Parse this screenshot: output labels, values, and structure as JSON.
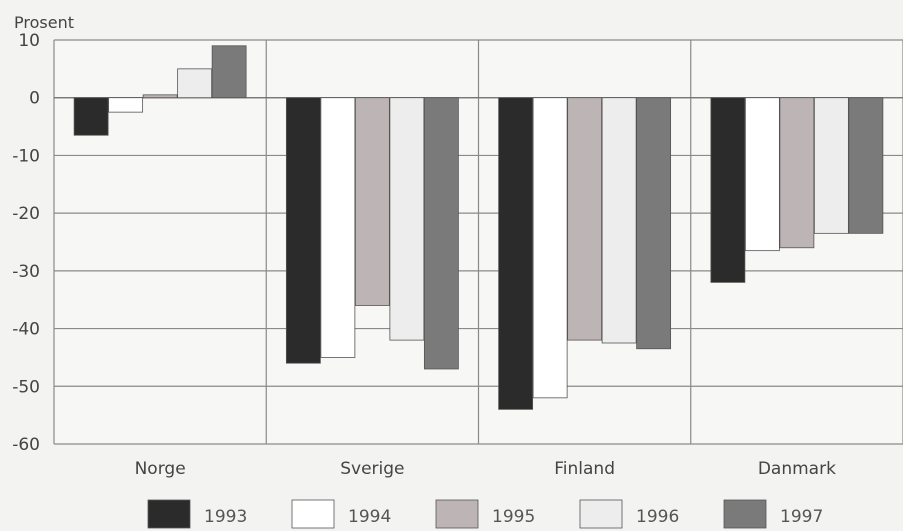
{
  "chart_data": {
    "type": "bar",
    "title": "",
    "unit_label": "Prosent",
    "xlabel": "",
    "ylabel": "Prosent",
    "ylim": [
      -60,
      10
    ],
    "yticks": [
      10,
      0,
      -10,
      -20,
      -30,
      -40,
      -50,
      -60
    ],
    "grid": true,
    "legend_position": "bottom",
    "categories": [
      "Norge",
      "Sverige",
      "Finland",
      "Danmark"
    ],
    "series": [
      {
        "name": "1993",
        "color": "#2b2b2b",
        "values": [
          -6.5,
          -46,
          -54,
          -32
        ]
      },
      {
        "name": "1994",
        "color": "#ffffff",
        "values": [
          -2.5,
          -45,
          -52,
          -26.5
        ]
      },
      {
        "name": "1995",
        "color": "#bdb5b5",
        "values": [
          0.5,
          -36,
          -42,
          -26
        ]
      },
      {
        "name": "1996",
        "color": "#ededed",
        "values": [
          5,
          -42,
          -42.5,
          -23.5
        ]
      },
      {
        "name": "1997",
        "color": "#7a7a7a",
        "values": [
          9,
          -47,
          -43.5,
          -23.5
        ]
      }
    ]
  }
}
